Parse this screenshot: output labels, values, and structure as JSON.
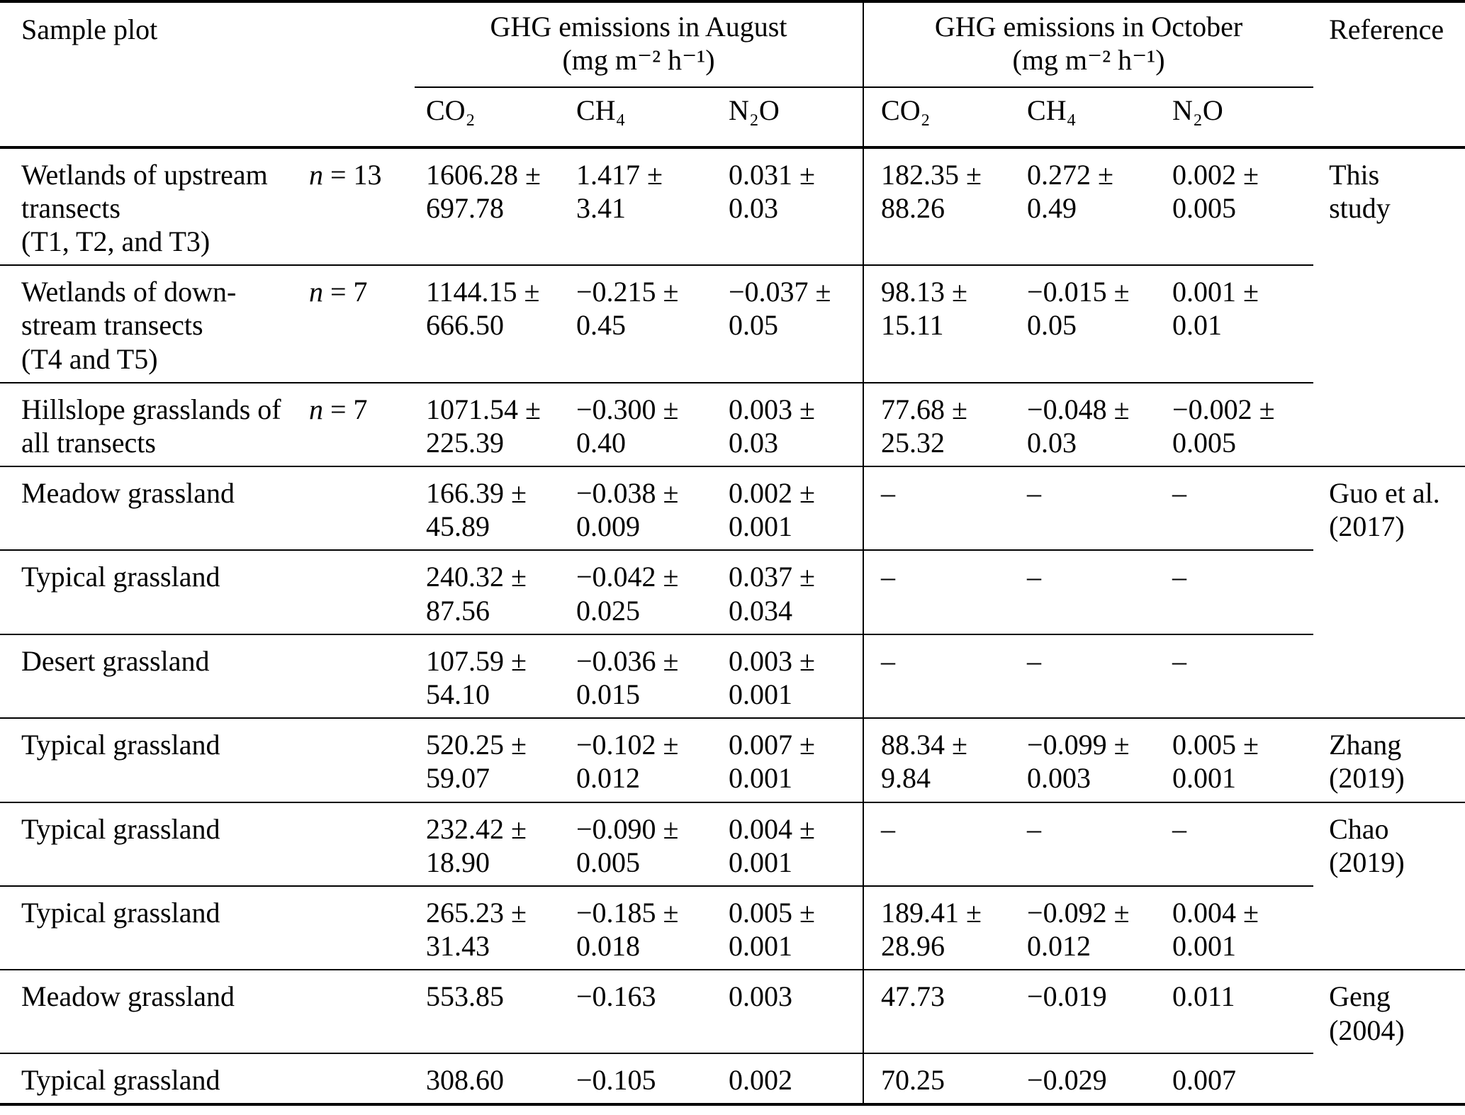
{
  "table": {
    "header": {
      "sample_plot": "Sample plot",
      "august": {
        "title": "GHG emissions in August",
        "unit": "(mg m⁻² h⁻¹)"
      },
      "october": {
        "title": "GHG emissions in October",
        "unit": "(mg m⁻² h⁻¹)"
      },
      "gases": {
        "co2": "CO₂",
        "ch4": "CH₄",
        "n2o": "N₂O"
      },
      "reference": "Reference"
    },
    "rows": [
      {
        "plot": [
          "Wetlands of upstream",
          "transects",
          "(T1, T2, and T3)"
        ],
        "n": "n = 13",
        "aug": [
          [
            "1606.28 ±",
            "697.78"
          ],
          [
            "1.417 ±",
            "3.41"
          ],
          [
            "0.031 ±",
            "0.03"
          ]
        ],
        "oct": [
          [
            "182.35 ±",
            "88.26"
          ],
          [
            "0.272 ±",
            "0.49"
          ],
          [
            "0.002 ±",
            "0.005"
          ]
        ],
        "reference": [
          "This",
          "study"
        ]
      },
      {
        "plot": [
          "Wetlands of down-",
          "stream transects",
          "(T4 and T5)"
        ],
        "n": "n = 7",
        "aug": [
          [
            "1144.15 ±",
            "666.50"
          ],
          [
            "−0.215 ±",
            "0.45"
          ],
          [
            "−0.037 ±",
            "0.05"
          ]
        ],
        "oct": [
          [
            "98.13 ±",
            "15.11"
          ],
          [
            "−0.015 ±",
            "0.05"
          ],
          [
            "0.001 ±",
            "0.01"
          ]
        ],
        "reference": []
      },
      {
        "plot": [
          "Hillslope grasslands of",
          "all transects"
        ],
        "n": "n = 7",
        "aug": [
          [
            "1071.54 ±",
            "225.39"
          ],
          [
            "−0.300 ±",
            "0.40"
          ],
          [
            "0.003 ±",
            "0.03"
          ]
        ],
        "oct": [
          [
            "77.68 ±",
            "25.32"
          ],
          [
            "−0.048 ±",
            "0.03"
          ],
          [
            "−0.002 ±",
            "0.005"
          ]
        ],
        "reference": []
      },
      {
        "plot": [
          "Meadow grassland"
        ],
        "n": "",
        "aug": [
          [
            "166.39 ±",
            "45.89"
          ],
          [
            "−0.038 ±",
            "0.009"
          ],
          [
            "0.002 ±",
            "0.001"
          ]
        ],
        "oct": [
          [
            "–"
          ],
          [
            "–"
          ],
          [
            "–"
          ]
        ],
        "reference": [
          "Guo et al.",
          "(2017)"
        ]
      },
      {
        "plot": [
          "Typical grassland"
        ],
        "n": "",
        "aug": [
          [
            "240.32 ±",
            "87.56"
          ],
          [
            "−0.042 ±",
            "0.025"
          ],
          [
            "0.037 ±",
            "0.034"
          ]
        ],
        "oct": [
          [
            "–"
          ],
          [
            "–"
          ],
          [
            "–"
          ]
        ],
        "reference": []
      },
      {
        "plot": [
          "Desert grassland"
        ],
        "n": "",
        "aug": [
          [
            "107.59 ±",
            "54.10"
          ],
          [
            "−0.036 ±",
            "0.015"
          ],
          [
            "0.003 ±",
            "0.001"
          ]
        ],
        "oct": [
          [
            "–"
          ],
          [
            "–"
          ],
          [
            "–"
          ]
        ],
        "reference": []
      },
      {
        "plot": [
          "Typical grassland"
        ],
        "n": "",
        "aug": [
          [
            "520.25 ±",
            "59.07"
          ],
          [
            "−0.102 ±",
            "0.012"
          ],
          [
            "0.007 ±",
            "0.001"
          ]
        ],
        "oct": [
          [
            "88.34 ±",
            "9.84"
          ],
          [
            "−0.099 ±",
            "0.003"
          ],
          [
            "0.005 ±",
            "0.001"
          ]
        ],
        "reference": [
          "Zhang",
          "(2019)"
        ]
      },
      {
        "plot": [
          "Typical grassland"
        ],
        "n": "",
        "aug": [
          [
            "232.42 ±",
            "18.90"
          ],
          [
            "−0.090 ±",
            "0.005"
          ],
          [
            "0.004 ±",
            "0.001"
          ]
        ],
        "oct": [
          [
            "–"
          ],
          [
            "–"
          ],
          [
            "–"
          ]
        ],
        "reference": [
          "Chao",
          "(2019)"
        ]
      },
      {
        "plot": [
          "Typical grassland"
        ],
        "n": "",
        "aug": [
          [
            "265.23 ±",
            "31.43"
          ],
          [
            "−0.185 ±",
            "0.018"
          ],
          [
            "0.005 ±",
            "0.001"
          ]
        ],
        "oct": [
          [
            "189.41 ±",
            "28.96"
          ],
          [
            "−0.092 ±",
            "0.012"
          ],
          [
            "0.004 ±",
            "0.001"
          ]
        ],
        "reference": []
      },
      {
        "plot": [
          "Meadow grassland"
        ],
        "n": "",
        "aug": [
          [
            "553.85"
          ],
          [
            "−0.163"
          ],
          [
            "0.003"
          ]
        ],
        "oct": [
          [
            "47.73"
          ],
          [
            "−0.019"
          ],
          [
            "0.011"
          ]
        ],
        "reference": [
          "Geng",
          "(2004)"
        ]
      },
      {
        "plot": [
          "Typical grassland"
        ],
        "n": "",
        "aug": [
          [
            "308.60"
          ],
          [
            "−0.105"
          ],
          [
            "0.002"
          ]
        ],
        "oct": [
          [
            "70.25"
          ],
          [
            "−0.029"
          ],
          [
            "0.007"
          ]
        ],
        "reference": []
      }
    ]
  }
}
